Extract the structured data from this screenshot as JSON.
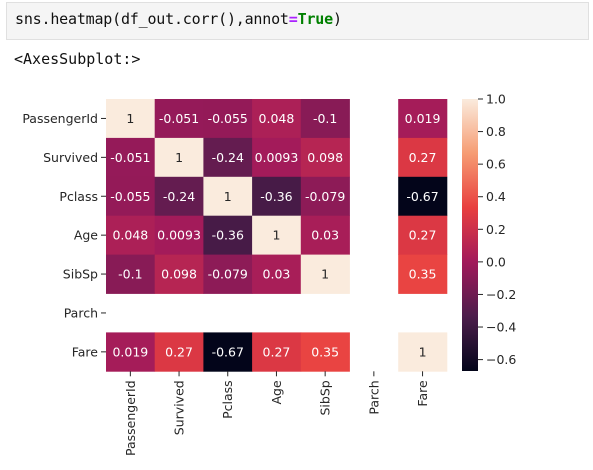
{
  "code_cell": {
    "prefix": "sns.heatmap(df_out.corr(),annot",
    "equals": "=",
    "keyword": "True",
    "suffix": ")"
  },
  "output_text": "<AxesSubplot:>",
  "chart_data": {
    "type": "heatmap",
    "row_labels": [
      "PassengerId",
      "Survived",
      "Pclass",
      "Age",
      "SibSp",
      "Parch",
      "Fare"
    ],
    "col_labels": [
      "PassengerId",
      "Survived",
      "Pclass",
      "Age",
      "SibSp",
      "Parch",
      "Fare"
    ],
    "values": [
      [
        1,
        -0.051,
        -0.055,
        0.048,
        -0.1,
        null,
        0.019
      ],
      [
        -0.051,
        1,
        -0.24,
        0.0093,
        0.098,
        null,
        0.27
      ],
      [
        -0.055,
        -0.24,
        1,
        -0.36,
        -0.079,
        null,
        -0.67
      ],
      [
        0.048,
        0.0093,
        -0.36,
        1,
        0.03,
        null,
        0.27
      ],
      [
        -0.1,
        0.098,
        -0.079,
        0.03,
        1,
        null,
        0.35
      ],
      [
        null,
        null,
        null,
        null,
        null,
        null,
        null
      ],
      [
        0.019,
        0.27,
        -0.67,
        0.27,
        0.35,
        null,
        1
      ]
    ],
    "annotations": [
      [
        "1",
        "-0.051",
        "-0.055",
        "0.048",
        "-0.1",
        "",
        "0.019"
      ],
      [
        "-0.051",
        "1",
        "-0.24",
        "0.0093",
        "0.098",
        "",
        "0.27"
      ],
      [
        "-0.055",
        "-0.24",
        "1",
        "-0.36",
        "-0.079",
        "",
        "-0.67"
      ],
      [
        "0.048",
        "0.0093",
        "-0.36",
        "1",
        "0.03",
        "",
        "0.27"
      ],
      [
        "-0.1",
        "0.098",
        "-0.079",
        "0.03",
        "1",
        "",
        "0.35"
      ],
      [
        "",
        "",
        "",
        "",
        "",
        "",
        ""
      ],
      [
        "0.019",
        "0.27",
        "-0.67",
        "0.27",
        "0.35",
        "",
        "1"
      ]
    ],
    "colorbar": {
      "min": -0.67,
      "max": 1.0,
      "ticks": [
        1.0,
        0.8,
        0.6,
        0.4,
        0.2,
        0.0,
        -0.2,
        -0.4,
        -0.6
      ],
      "tick_labels": [
        "1.0",
        "0.8",
        "0.6",
        "0.4",
        "0.2",
        "0.0",
        "−0.2",
        "−0.4",
        "−0.6"
      ],
      "colormap": "rocket",
      "stops": [
        "#03051a",
        "#4c1d4b",
        "#a11a5b",
        "#e83f3f",
        "#f69c73",
        "#faebdd"
      ]
    }
  }
}
